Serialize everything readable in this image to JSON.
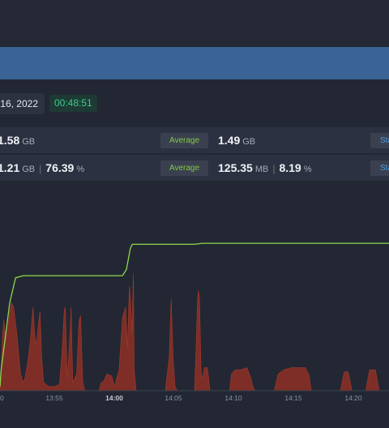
{
  "header": {
    "date_text": "16, 2022",
    "timer": "00:48:51"
  },
  "stats": {
    "row1": {
      "value": "1.58",
      "unit": "GB",
      "average_label": "Average",
      "avg_value": "1.49",
      "avg_unit": "GB",
      "stat_label": "Sta"
    },
    "row2": {
      "value": "1.21",
      "unit": "GB",
      "percent": "76.39",
      "percent_unit": "%",
      "average_label": "Average",
      "avg_value": "125.35",
      "avg_unit": "MB",
      "avg_percent": "8.19",
      "avg_percent_unit": "%",
      "stat_label": "Sta"
    }
  },
  "colors": {
    "accent_blue": "#3a6496",
    "timer_green": "#41c98c",
    "average_green": "#84c943",
    "line_green": "#8fd64a",
    "area_red": "#8e3026"
  },
  "chart_data": {
    "type": "area",
    "x_tick_labels": [
      "0",
      "13:55",
      "14:00",
      "14:05",
      "14:10",
      "14:15",
      "14:20"
    ],
    "bold_tick": "14:00",
    "series": [
      {
        "style": "line",
        "color": "#8fd64a",
        "y_pct": [
          [
            0,
            2
          ],
          [
            0.3,
            10
          ],
          [
            2.5,
            42
          ],
          [
            4,
            54
          ],
          [
            6,
            55
          ],
          [
            10,
            55
          ],
          [
            15,
            55
          ],
          [
            17.5,
            55
          ],
          [
            20,
            55
          ],
          [
            30,
            55
          ],
          [
            31.5,
            55
          ],
          [
            32.5,
            58
          ],
          [
            33.5,
            68
          ],
          [
            34,
            70
          ],
          [
            36,
            70
          ],
          [
            42,
            70
          ],
          [
            46,
            70
          ],
          [
            50,
            70
          ],
          [
            52,
            70.5
          ],
          [
            56,
            70.5
          ],
          [
            70,
            70.5
          ],
          [
            85,
            70.5
          ],
          [
            100,
            70.5
          ]
        ]
      },
      {
        "style": "area",
        "color": "#8e3026",
        "y_pct": [
          [
            0,
            0
          ],
          [
            0.2,
            8
          ],
          [
            0.6,
            25
          ],
          [
            1,
            34
          ],
          [
            1.5,
            24
          ],
          [
            2,
            30
          ],
          [
            2.5,
            38
          ],
          [
            3,
            42
          ],
          [
            3.5,
            40
          ],
          [
            4,
            32
          ],
          [
            4.3,
            28
          ],
          [
            4.7,
            20
          ],
          [
            5.3,
            8
          ],
          [
            6,
            4
          ],
          [
            6.3,
            5
          ],
          [
            6.8,
            10
          ],
          [
            7.3,
            16
          ],
          [
            7.8,
            24
          ],
          [
            8.2,
            34
          ],
          [
            8.5,
            40
          ],
          [
            8.8,
            30
          ],
          [
            9.2,
            22
          ],
          [
            9.5,
            24
          ],
          [
            9.9,
            32
          ],
          [
            10.3,
            38
          ],
          [
            10.7,
            16
          ],
          [
            11.2,
            4
          ],
          [
            12.5,
            2
          ],
          [
            14,
            2
          ],
          [
            15.3,
            3
          ],
          [
            16,
            20
          ],
          [
            16.5,
            38
          ],
          [
            16.8,
            40
          ],
          [
            17.3,
            6
          ],
          [
            17.8,
            20
          ],
          [
            18.3,
            40
          ],
          [
            18.7,
            4
          ],
          [
            19.7,
            8
          ],
          [
            20.3,
            33
          ],
          [
            20.7,
            36
          ],
          [
            21.3,
            4
          ],
          [
            21.8,
            0
          ],
          [
            24,
            0
          ],
          [
            25.5,
            0
          ],
          [
            26,
            4
          ],
          [
            26.5,
            4
          ],
          [
            27.5,
            8
          ],
          [
            28.7,
            7
          ],
          [
            29.5,
            2
          ],
          [
            30,
            6
          ],
          [
            30.6,
            10
          ],
          [
            31.5,
            35
          ],
          [
            32.3,
            40
          ],
          [
            32.8,
            20
          ],
          [
            33.1,
            42
          ],
          [
            33.3,
            50
          ],
          [
            33.6,
            42
          ],
          [
            33.9,
            28
          ],
          [
            34.3,
            56
          ],
          [
            34.5,
            10
          ],
          [
            35,
            0
          ],
          [
            40,
            0
          ],
          [
            42.5,
            0
          ],
          [
            43.5,
            16
          ],
          [
            44,
            44
          ],
          [
            44.5,
            16
          ],
          [
            45,
            2
          ],
          [
            45.5,
            0
          ],
          [
            49,
            0
          ],
          [
            50,
            0
          ],
          [
            50.4,
            20
          ],
          [
            50.8,
            44
          ],
          [
            51,
            48
          ],
          [
            51.3,
            44
          ],
          [
            51.7,
            8
          ],
          [
            52,
            6
          ],
          [
            52.6,
            11
          ],
          [
            53.3,
            11
          ],
          [
            53.7,
            5
          ],
          [
            54,
            0
          ],
          [
            58,
            0
          ],
          [
            59,
            0
          ],
          [
            59.5,
            8
          ],
          [
            60.5,
            10
          ],
          [
            62,
            10
          ],
          [
            63.5,
            11
          ],
          [
            64.5,
            6
          ],
          [
            65,
            2
          ],
          [
            65.5,
            0
          ],
          [
            70.5,
            0
          ],
          [
            71.5,
            8
          ],
          [
            73,
            10
          ],
          [
            75,
            11
          ],
          [
            77,
            11
          ],
          [
            78.5,
            11
          ],
          [
            79.5,
            7
          ],
          [
            80,
            0
          ],
          [
            87.5,
            0
          ],
          [
            88.5,
            9
          ],
          [
            89.5,
            9
          ],
          [
            90.5,
            0
          ],
          [
            94,
            0
          ],
          [
            95,
            10
          ],
          [
            96.5,
            10
          ],
          [
            97.5,
            0
          ],
          [
            100,
            0
          ]
        ]
      }
    ]
  }
}
